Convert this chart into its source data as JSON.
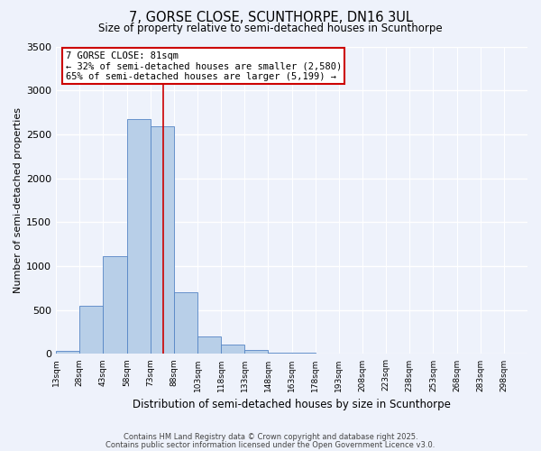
{
  "title_line1": "7, GORSE CLOSE, SCUNTHORPE, DN16 3UL",
  "title_line2": "Size of property relative to semi-detached houses in Scunthorpe",
  "xlabel": "Distribution of semi-detached houses by size in Scunthorpe",
  "ylabel": "Number of semi-detached properties",
  "bin_edges": [
    13,
    28,
    43,
    58,
    73,
    88,
    103,
    118,
    133,
    148,
    163,
    178,
    193,
    208,
    223,
    238,
    253,
    268,
    283,
    298,
    313
  ],
  "bar_heights": [
    40,
    550,
    1110,
    2670,
    2590,
    700,
    195,
    105,
    45,
    10,
    10,
    0,
    0,
    0,
    0,
    0,
    0,
    0,
    0,
    0
  ],
  "bar_color": "#b8cfe8",
  "bar_edgecolor": "#5585c5",
  "property_line_x": 81,
  "annotation_line1": "7 GORSE CLOSE: 81sqm",
  "annotation_line2": "← 32% of semi-detached houses are smaller (2,580)",
  "annotation_line3": "65% of semi-detached houses are larger (5,199) →",
  "annotation_box_color": "#ffffff",
  "annotation_box_edgecolor": "#cc0000",
  "vline_color": "#cc0000",
  "ylim": [
    0,
    3500
  ],
  "yticks": [
    0,
    500,
    1000,
    1500,
    2000,
    2500,
    3000,
    3500
  ],
  "background_color": "#eef2fb",
  "plot_background": "#eef2fb",
  "grid_color": "#ffffff",
  "footer_line1": "Contains HM Land Registry data © Crown copyright and database right 2025.",
  "footer_line2": "Contains public sector information licensed under the Open Government Licence v3.0."
}
